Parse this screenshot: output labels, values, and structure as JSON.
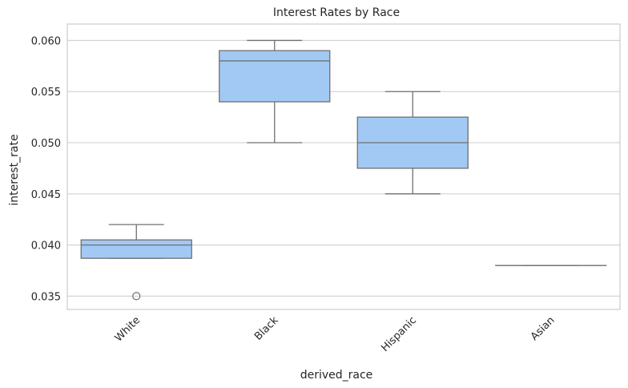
{
  "chart_data": {
    "type": "box",
    "title": "Interest Rates by Race",
    "xlabel": "derived_race",
    "ylabel": "interest_rate",
    "categories": [
      "White",
      "Black",
      "Hispanic",
      "Asian"
    ],
    "ylim": [
      0.0337,
      0.0616
    ],
    "yticks": [
      0.035,
      0.04,
      0.045,
      0.05,
      0.055,
      0.06
    ],
    "ytick_labels": [
      "0.035",
      "0.040",
      "0.045",
      "0.050",
      "0.055",
      "0.060"
    ],
    "grid": "horizontal",
    "boxes": [
      {
        "category": "White",
        "whisker_low": 0.0387,
        "q1": 0.0387,
        "median": 0.04,
        "q3": 0.0405,
        "whisker_high": 0.042,
        "outliers": [
          0.035
        ]
      },
      {
        "category": "Black",
        "whisker_low": 0.05,
        "q1": 0.054,
        "median": 0.058,
        "q3": 0.059,
        "whisker_high": 0.06,
        "outliers": []
      },
      {
        "category": "Hispanic",
        "whisker_low": 0.045,
        "q1": 0.0475,
        "median": 0.05,
        "q3": 0.0525,
        "whisker_high": 0.055,
        "outliers": []
      },
      {
        "category": "Asian",
        "whisker_low": 0.038,
        "q1": 0.038,
        "median": 0.038,
        "q3": 0.038,
        "whisker_high": 0.038,
        "outliers": []
      }
    ],
    "colors": {
      "box_fill": "#a1c9f4",
      "line": "#707070",
      "grid": "#cccccc",
      "spine": "#cccccc",
      "text": "#262626"
    }
  }
}
